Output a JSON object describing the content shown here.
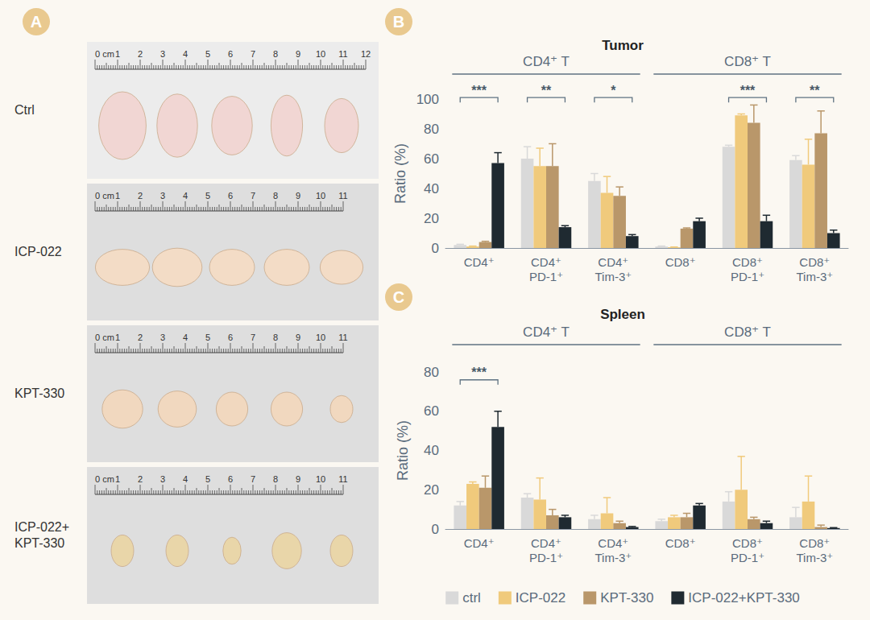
{
  "panel_a": {
    "letter": "A",
    "rows": [
      {
        "label": "Ctrl",
        "color": "#f1d6d3",
        "ruler": [
          {
            "value": 0,
            "label": "0 cm"
          },
          1,
          2,
          3,
          4,
          5,
          6,
          7,
          8,
          9,
          10,
          11,
          12
        ],
        "tumors": [
          [
            2.1,
            3.0
          ],
          [
            1.8,
            2.8
          ],
          [
            1.8,
            2.6
          ],
          [
            1.4,
            2.7
          ],
          [
            1.5,
            2.4
          ]
        ]
      },
      {
        "label": "ICP-022",
        "color": "#f3dcc6",
        "ruler": [
          {
            "value": 0,
            "label": "0 cm"
          },
          1,
          2,
          3,
          4,
          5,
          6,
          7,
          8,
          9,
          10,
          11
        ],
        "tumors": [
          [
            2.4,
            1.6
          ],
          [
            2.2,
            1.7
          ],
          [
            2.0,
            1.6
          ],
          [
            2.0,
            1.6
          ],
          [
            1.9,
            1.5
          ]
        ]
      },
      {
        "label": "KPT-330",
        "color": "#f1d8bf",
        "ruler": [
          {
            "value": 0,
            "label": "0 cm"
          },
          1,
          2,
          3,
          4,
          5,
          6,
          7,
          8,
          9,
          10,
          11
        ],
        "tumors": [
          [
            1.8,
            1.7
          ],
          [
            1.7,
            1.6
          ],
          [
            1.4,
            1.5
          ],
          [
            1.4,
            1.5
          ],
          [
            1.0,
            1.2
          ]
        ]
      },
      {
        "label": "ICP-022+KPT-330",
        "color": "#e9d6a9",
        "ruler": [
          {
            "value": 0,
            "label": "0 cm"
          },
          1,
          2,
          3,
          4,
          5,
          6,
          7,
          8,
          9,
          10,
          11
        ],
        "tumors": [
          [
            1.0,
            1.4
          ],
          [
            1.0,
            1.4
          ],
          [
            0.8,
            1.2
          ],
          [
            1.3,
            1.6
          ],
          [
            1.0,
            1.4
          ]
        ]
      }
    ]
  },
  "chart_data": [
    {
      "type": "bar",
      "letter": "B",
      "title": "Tumor",
      "y_label": "Ratio (%)",
      "categories": [
        "CD4⁺",
        "CD4⁺ PD-1⁺",
        "CD4⁺ Tim-3⁺",
        "CD8⁺",
        "CD8⁺ PD-1⁺",
        "CD8⁺ Tim-3⁺"
      ],
      "groups": [
        {
          "label": "CD4⁺ T",
          "from": "CD4⁺",
          "to": "CD4⁺ Tim-3⁺"
        },
        {
          "label": "CD8⁺ T",
          "from": "CD8⁺",
          "to": "CD8⁺ Tim-3⁺"
        }
      ],
      "series": [
        {
          "name": "ctrl",
          "color": "#d9d9d9",
          "values": [
            2,
            60,
            45,
            1,
            68,
            59
          ],
          "errors": [
            0.5,
            8,
            5,
            0.3,
            1,
            3
          ]
        },
        {
          "name": "ICP-022",
          "color": "#f0ca7c",
          "values": [
            1,
            55,
            37,
            0.5,
            89,
            56
          ],
          "errors": [
            0.3,
            12,
            11,
            0.2,
            1,
            17
          ]
        },
        {
          "name": "KPT-330",
          "color": "#b9976a",
          "values": [
            4,
            55,
            35,
            13,
            84,
            77
          ],
          "errors": [
            0.5,
            15,
            6,
            0.5,
            12,
            15
          ]
        },
        {
          "name": "ICP-022+KPT-330",
          "color": "#1f2a31",
          "values": [
            57,
            14,
            8,
            18,
            18,
            10
          ],
          "errors": [
            7,
            1,
            1,
            2,
            4,
            2
          ]
        }
      ],
      "annotations": [
        {
          "category": "CD4⁺",
          "series": [
            "ctrl",
            "ICP-022+KPT-330"
          ],
          "y": 101,
          "label": "***"
        },
        {
          "category": "CD4⁺ PD-1⁺",
          "series": [
            "ctrl",
            "ICP-022+KPT-330"
          ],
          "y": 101,
          "label": "**"
        },
        {
          "category": "CD4⁺ Tim-3⁺",
          "series": [
            "ctrl",
            "ICP-022+KPT-330"
          ],
          "y": 101,
          "label": "*"
        },
        {
          "category": "CD8⁺ PD-1⁺",
          "series": [
            "ctrl",
            "ICP-022+KPT-330"
          ],
          "y": 101,
          "label": "***"
        },
        {
          "category": "CD8⁺ Tim-3⁺",
          "series": [
            "ctrl",
            "ICP-022+KPT-330"
          ],
          "y": 101,
          "label": "**"
        }
      ],
      "ylim": [
        0,
        100
      ],
      "yticks": [
        0,
        20,
        40,
        60,
        80,
        100
      ],
      "grid": false
    },
    {
      "type": "bar",
      "letter": "C",
      "title": "Spleen",
      "y_label": "Ratio (%)",
      "categories": [
        "CD4⁺",
        "CD4⁺ PD-1⁺",
        "CD4⁺ Tim-3⁺",
        "CD8⁺",
        "CD8⁺ PD-1⁺",
        "CD8⁺ Tim-3⁺"
      ],
      "groups": [
        {
          "label": "CD4⁺ T",
          "from": "CD4⁺",
          "to": "CD4⁺ Tim-3⁺"
        },
        {
          "label": "CD8⁺ T",
          "from": "CD8⁺",
          "to": "CD8⁺ Tim-3⁺"
        }
      ],
      "series": [
        {
          "name": "ctrl",
          "color": "#d9d9d9",
          "values": [
            12,
            16,
            5,
            4,
            14,
            6
          ],
          "errors": [
            2,
            2,
            2,
            1,
            5,
            5
          ]
        },
        {
          "name": "ICP-022",
          "color": "#f0ca7c",
          "values": [
            23,
            15,
            8,
            6,
            20,
            14
          ],
          "errors": [
            1,
            11,
            8,
            1,
            17,
            13
          ]
        },
        {
          "name": "KPT-330",
          "color": "#b9976a",
          "values": [
            21,
            7,
            3,
            6,
            5,
            1
          ],
          "errors": [
            6,
            3,
            1,
            2,
            1,
            1
          ]
        },
        {
          "name": "ICP-022+KPT-330",
          "color": "#1f2a31",
          "values": [
            52,
            6,
            1,
            12,
            3,
            0.5
          ],
          "errors": [
            8,
            1,
            0.3,
            1,
            1,
            0.2
          ]
        }
      ],
      "annotations": [
        {
          "category": "CD4⁺",
          "series": [
            "ctrl",
            "ICP-022+KPT-330"
          ],
          "y": 76,
          "label": "***"
        }
      ],
      "ylim": [
        0,
        80
      ],
      "yticks": [
        0,
        20,
        40,
        60,
        80
      ],
      "grid": false,
      "legend": "bottom"
    }
  ]
}
